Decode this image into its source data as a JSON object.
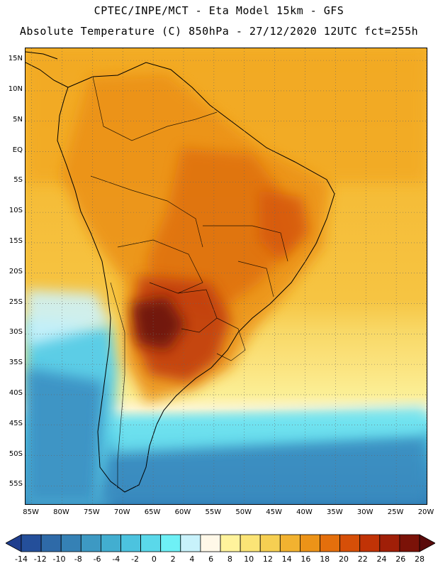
{
  "header": {
    "line1": "CPTEC/INPE/MCT -  Eta Model 15km - GFS",
    "line2": "Absolute Temperature (C) 850hPa - 27/12/2020 12UTC fct=255h"
  },
  "map": {
    "lat_labels": [
      "15N",
      "10N",
      "5N",
      "EQ",
      "5S",
      "10S",
      "15S",
      "20S",
      "25S",
      "30S",
      "35S",
      "40S",
      "45S",
      "50S",
      "55S"
    ],
    "lat_values": [
      15,
      10,
      5,
      0,
      -5,
      -10,
      -15,
      -20,
      -25,
      -30,
      -35,
      -40,
      -45,
      -50,
      -55
    ],
    "lon_labels": [
      "85W",
      "80W",
      "75W",
      "70W",
      "65W",
      "60W",
      "55W",
      "50W",
      "45W",
      "40W",
      "35W",
      "30W",
      "25W",
      "20W"
    ],
    "lon_values": [
      -85,
      -80,
      -75,
      -70,
      -65,
      -60,
      -55,
      -50,
      -45,
      -40,
      -35,
      -30,
      -25,
      -20
    ],
    "lat_range": [
      -58,
      17
    ],
    "lon_range": [
      -86,
      -20
    ],
    "gridlines": true,
    "variable": "Absolute Temperature (C) 850hPa"
  },
  "colorbar": {
    "labels": [
      "-14",
      "-12",
      "-10",
      "-8",
      "-6",
      "-4",
      "-2",
      "0",
      "2",
      "4",
      "6",
      "8",
      "10",
      "12",
      "14",
      "16",
      "18",
      "20",
      "22",
      "24",
      "26",
      "28"
    ],
    "colors": [
      "#1f3e8e",
      "#244f9a",
      "#2e6aa8",
      "#3581b5",
      "#3d99c3",
      "#42aed0",
      "#4cc3df",
      "#5ad8ea",
      "#6ef0f6",
      "#c8f2fb",
      "#fff8e8",
      "#fff39c",
      "#fbe476",
      "#f6cf52",
      "#f2b230",
      "#ec9318",
      "#e46f0c",
      "#d64f08",
      "#c13306",
      "#a01f08",
      "#7b1208",
      "#5a0a0a"
    ]
  }
}
